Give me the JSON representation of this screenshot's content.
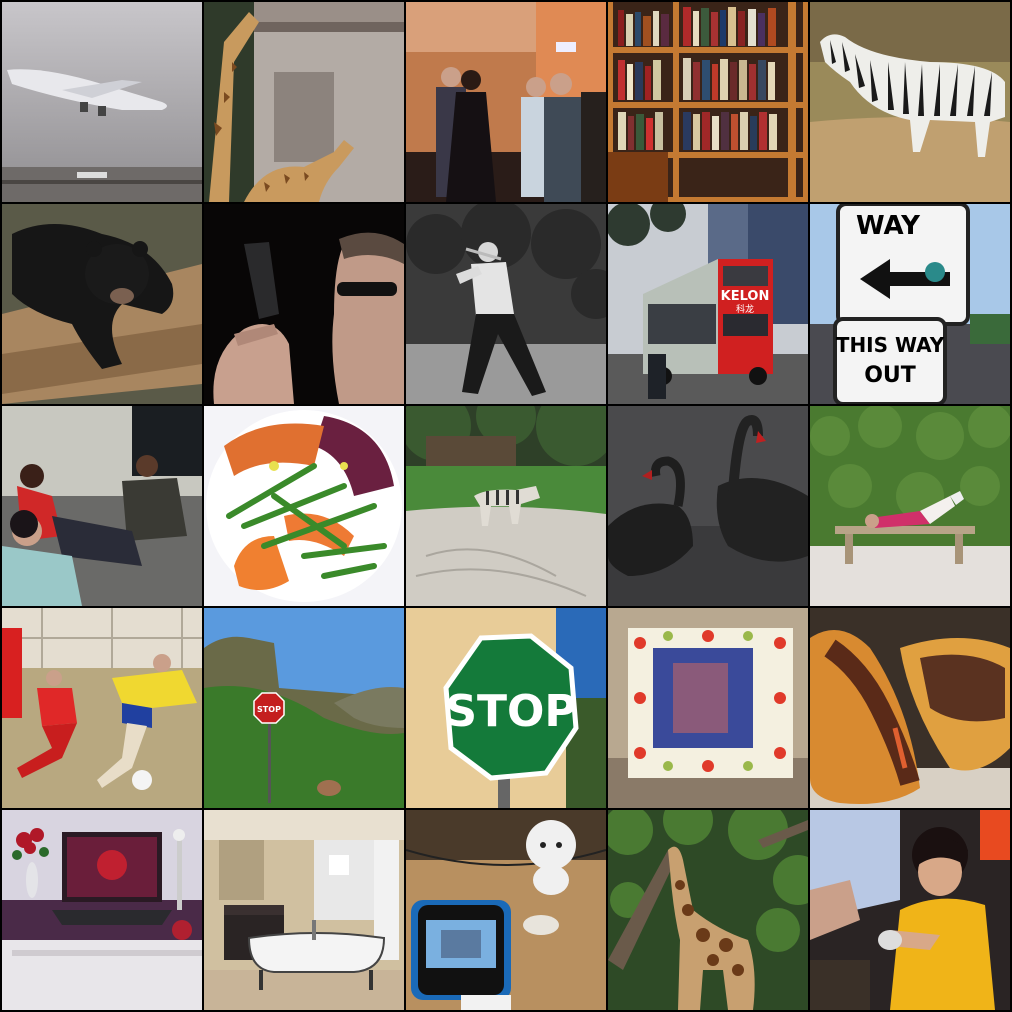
{
  "grid": {
    "rows": 5,
    "columns": 5
  },
  "photos": [
    {
      "row": 1,
      "col": 1,
      "subject": "airliner-landing-in-fog"
    },
    {
      "row": 1,
      "col": 2,
      "subject": "giraffes-by-building"
    },
    {
      "row": 1,
      "col": 3,
      "subject": "people-at-indoor-party"
    },
    {
      "row": 1,
      "col": 4,
      "subject": "bookshelf"
    },
    {
      "row": 1,
      "col": 5,
      "subject": "zebra-in-grass"
    },
    {
      "row": 2,
      "col": 1,
      "subject": "black-bear-cub-on-log"
    },
    {
      "row": 2,
      "col": 2,
      "subject": "man-with-pistol-and-sunglasses"
    },
    {
      "row": 2,
      "col": 3,
      "subject": "man-swinging-bat-black-and-white"
    },
    {
      "row": 2,
      "col": 4,
      "subject": "red-double-decker-bus"
    },
    {
      "row": 2,
      "col": 5,
      "subject": "way-signs"
    },
    {
      "row": 3,
      "col": 1,
      "subject": "people-on-couch"
    },
    {
      "row": 3,
      "col": 2,
      "subject": "salad-plate"
    },
    {
      "row": 3,
      "col": 3,
      "subject": "zebras-in-enclosure"
    },
    {
      "row": 3,
      "col": 4,
      "subject": "black-swans"
    },
    {
      "row": 3,
      "col": 5,
      "subject": "person-on-bench-by-hedge"
    },
    {
      "row": 4,
      "col": 1,
      "subject": "soccer-players"
    },
    {
      "row": 4,
      "col": 2,
      "subject": "stop-sign-mountain-valley"
    },
    {
      "row": 4,
      "col": 3,
      "subject": "green-stop-sign"
    },
    {
      "row": 4,
      "col": 4,
      "subject": "decorated-cake"
    },
    {
      "row": 4,
      "col": 5,
      "subject": "sandwich"
    },
    {
      "row": 5,
      "col": 1,
      "subject": "laptop-and-flowers"
    },
    {
      "row": 5,
      "col": 2,
      "subject": "bathroom-with-tub"
    },
    {
      "row": 5,
      "col": 3,
      "subject": "phone-and-toy-figure"
    },
    {
      "row": 5,
      "col": 4,
      "subject": "giraffe-under-trees"
    },
    {
      "row": 5,
      "col": 5,
      "subject": "girl-in-yellow-dress"
    }
  ],
  "texts": {
    "bus_brand": "KELON",
    "bus_chinese": "科龙",
    "way_sign_top": "WAY",
    "way_sign_bottom_1": "THIS WAY",
    "way_sign_bottom_2": "OUT",
    "small_stop": "STOP",
    "green_stop": "STOP"
  }
}
